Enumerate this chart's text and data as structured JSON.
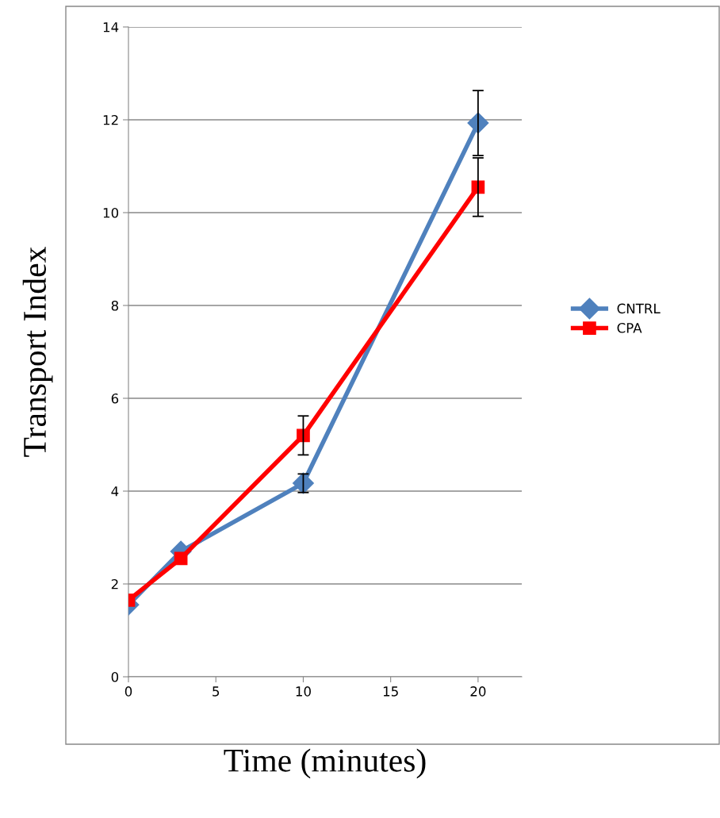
{
  "chart_data": {
    "type": "line",
    "xlabel": "Time (minutes)",
    "ylabel": "Transport Index",
    "x": [
      0,
      3,
      10,
      20
    ],
    "series": [
      {
        "name": "CNTRL",
        "color": "#4f81bd",
        "marker": "diamond",
        "values": [
          1.55,
          2.7,
          4.17,
          11.93
        ],
        "errors": [
          null,
          null,
          0.2,
          0.7
        ]
      },
      {
        "name": "CPA",
        "color": "#ff0000",
        "marker": "square",
        "values": [
          1.65,
          2.55,
          5.2,
          10.55
        ],
        "errors": [
          null,
          null,
          0.42,
          0.63
        ]
      }
    ],
    "xlim": [
      0,
      22.5
    ],
    "xticks": [
      0,
      5,
      10,
      15,
      20
    ],
    "ylim": [
      0,
      14
    ],
    "yticks": [
      0,
      2,
      4,
      6,
      8,
      10,
      12,
      14
    ],
    "grid": "y",
    "legend": "right",
    "line_style": "solid"
  }
}
